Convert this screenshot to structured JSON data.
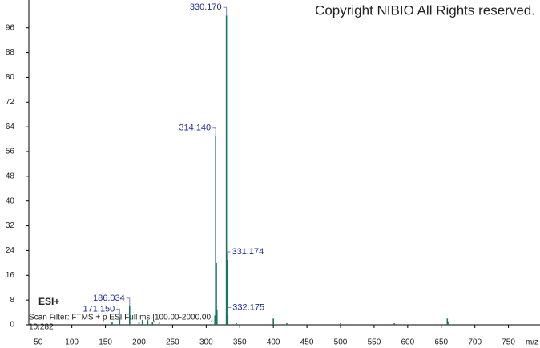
{
  "chart_data": {
    "type": "spectrum",
    "copyright": "Copyright NIBIO All Rights reserved.",
    "mode": "ESI+",
    "scan_filter": "Scan Filter: FTMS + p ESI Full ms [100.00-2000.00]",
    "retention_time": "10.282",
    "x_label": "m/z",
    "color": "#1a7466",
    "xlim": [
      36,
      797
    ],
    "ylim": [
      0,
      105
    ],
    "xticks": [
      50,
      100,
      150,
      200,
      250,
      300,
      350,
      400,
      450,
      500,
      550,
      600,
      650,
      700,
      750
    ],
    "yticks": [
      0,
      8,
      16,
      24,
      32,
      40,
      48,
      56,
      64,
      72,
      80,
      88,
      96
    ],
    "x": [
      160,
      171.15,
      186.034,
      200,
      205,
      213,
      220,
      230,
      313,
      314.14,
      315.14,
      316,
      330.17,
      331.174,
      332.175,
      345,
      400,
      420,
      500,
      580,
      659,
      661
    ],
    "values": [
      1,
      2.5,
      6,
      1,
      1.5,
      1.5,
      1,
      0.8,
      3,
      61,
      20,
      5,
      100,
      21,
      3,
      0.5,
      2,
      0.5,
      0.5,
      0.5,
      2,
      1
    ],
    "labels": [
      null,
      "171.150",
      "186.034",
      null,
      null,
      null,
      null,
      null,
      null,
      "314.140",
      null,
      null,
      "330.170",
      "331.174",
      "332.175",
      null,
      null,
      null,
      null,
      null,
      null,
      null
    ]
  }
}
